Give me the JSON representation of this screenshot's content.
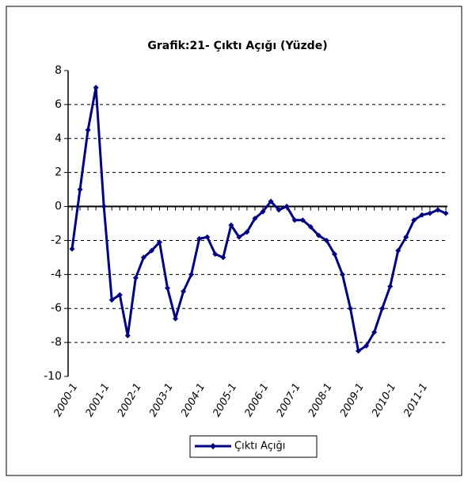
{
  "chart_data": {
    "type": "line",
    "title": "Grafik:21- Çıktı Açığı (Yüzde)",
    "categories": [
      "2000-1",
      null,
      null,
      null,
      "2001-1",
      null,
      null,
      null,
      "2002-1",
      null,
      null,
      null,
      "2003-1",
      null,
      null,
      null,
      "2004-1",
      null,
      null,
      null,
      "2005-1",
      null,
      null,
      null,
      "2006-1",
      null,
      null,
      null,
      "2007-1",
      null,
      null,
      null,
      "2008-1",
      null,
      null,
      null,
      "2009-1",
      null,
      null,
      null,
      "2010-1",
      null,
      null,
      null,
      "2011-1",
      null,
      null,
      null
    ],
    "series": [
      {
        "name": "Çıktı Açığı",
        "color": "#000080",
        "values": [
          -2.5,
          1.0,
          4.5,
          7.0,
          0.0,
          -5.5,
          -5.2,
          -7.6,
          -4.2,
          -3.0,
          -2.6,
          -2.1,
          -4.8,
          -6.6,
          -5.0,
          -4.0,
          -1.9,
          -1.8,
          -2.8,
          -3.0,
          -1.1,
          -1.8,
          -1.5,
          -0.7,
          -0.3,
          0.3,
          -0.2,
          0.0,
          -0.8,
          -0.8,
          -1.2,
          -1.7,
          -2.0,
          -2.8,
          -4.0,
          -6.0,
          -8.5,
          -8.2,
          -7.4,
          -6.0,
          -4.7,
          -2.6,
          -1.8,
          -0.8,
          -0.5,
          -0.4,
          -0.2,
          -0.4
        ]
      }
    ],
    "ylim": [
      -10,
      8
    ],
    "yticks": [
      -10,
      -8,
      -6,
      -4,
      -2,
      0,
      2,
      4,
      6,
      8
    ],
    "grid": true,
    "legend": "bottom"
  }
}
